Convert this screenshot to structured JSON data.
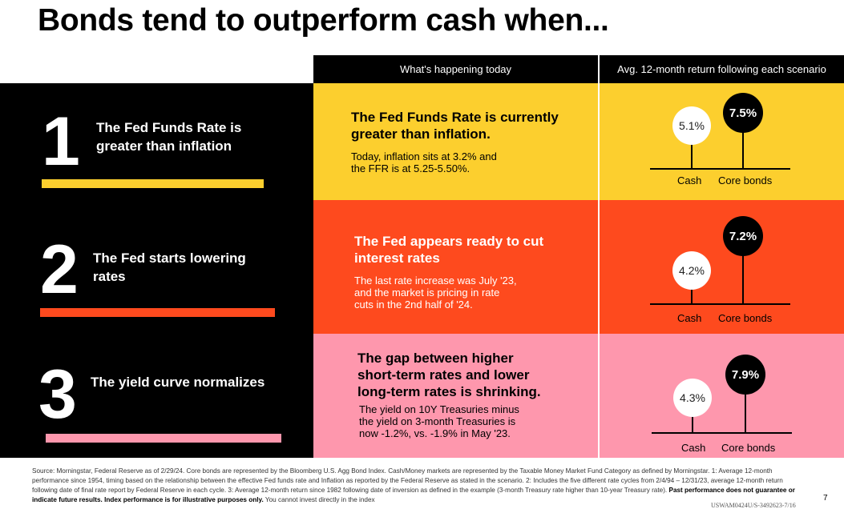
{
  "title": "Bonds tend to outperform cash when...",
  "headers": {
    "today": "What's happening today",
    "returns": "Avg. 12-month return following each scenario"
  },
  "rows": [
    {
      "num": "1",
      "label_line1": "The Fed Funds Rate is",
      "label_line2": "greater than inflation",
      "head_line1": "The Fed Funds Rate is currently",
      "head_line2": "greater than inflation.",
      "body_lines": [
        "Today, inflation sits at 3.2% and",
        "the FFR is at 5.25-5.50%."
      ],
      "cash_value": "5.1%",
      "bonds_value": "7.5%",
      "cash_label": "Cash",
      "bonds_label": "Core bonds",
      "bg": "#fccf2e",
      "accent": "#fccf2e"
    },
    {
      "num": "2",
      "label_line1": "The Fed starts lowering",
      "label_line2": "rates",
      "head_line1": "The Fed appears ready to cut",
      "head_line2": "interest rates",
      "body_lines": [
        "The last rate increase was July '23,",
        "and the market is pricing in rate",
        "cuts in the 2nd half of '24."
      ],
      "cash_value": "4.2%",
      "bonds_value": "7.2%",
      "cash_label": "Cash",
      "bonds_label": "Core bonds",
      "bg": "#fe4a1e",
      "accent": "#fe4a1e"
    },
    {
      "num": "3",
      "label_line1": "The yield curve normalizes",
      "label_line2": "",
      "head_line1": "The gap between higher",
      "head_line2": "short-term rates and lower",
      "head_line3": "long-term rates is shrinking.",
      "body_lines": [
        "The yield on 10Y Treasuries minus",
        "the yield on 3-month Treasuries is",
        "now -1.2%, vs. -1.9% in May '23."
      ],
      "cash_value": "4.3%",
      "bonds_value": "7.9%",
      "cash_label": "Cash",
      "bonds_label": "Core bonds",
      "bg": "#fe97ad",
      "accent": "#fe97ad"
    }
  ],
  "footnote": {
    "text": "Source: Morningstar, Federal Reserve as of 2/29/24. Core bonds are represented by the Bloomberg U.S. Agg Bond Index. Cash/Money markets are represented by the Taxable Money Market Fund Category as defined by Morningstar. 1: Average 12-month performance since 1954, timing based on the relationship between the effective Fed funds rate and Inflation as reported by the Federal Reserve as stated in the scenario. 2: Includes the five different rate cycles from 2/4/94 – 12/31/23, average 12-month return following date of final rate report by Federal Reserve in each cycle. 3: Average 12-month return since 1982 following date of inversion as defined in the example (3-month Treasury rate higher than 10-year Treasury rate).",
    "bold": "Past performance does not guarantee or indicate future results. Index performance is for illustrative purposes only.",
    "tail": "You cannot invest directly in the index"
  },
  "page_number": "7",
  "doc_code": "USWAM0424U/S-3492623-7/16"
}
